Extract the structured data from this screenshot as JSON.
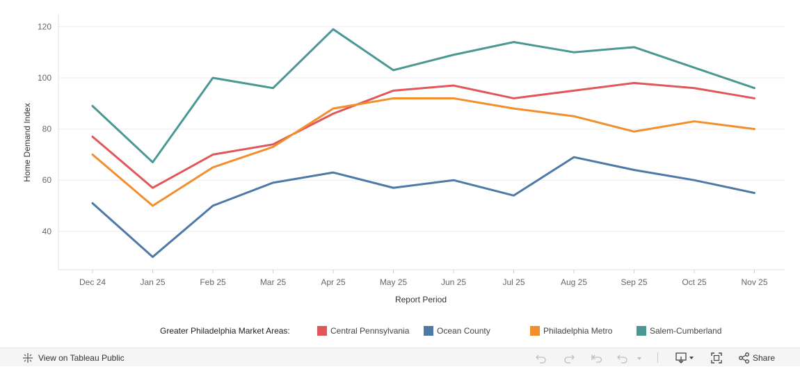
{
  "chart_data": {
    "type": "line",
    "title": "",
    "xlabel": "Report Period",
    "ylabel": "Home Demand Index",
    "ylim": [
      25,
      125
    ],
    "yticks": [
      "40",
      "60",
      "80",
      "100",
      "120"
    ],
    "grid": true,
    "categories": [
      "Dec 24",
      "Jan 25",
      "Feb 25",
      "Mar 25",
      "Apr 25",
      "May 25",
      "Jun 25",
      "Jul 25",
      "Aug 25",
      "Sep 25",
      "Oct 25",
      "Nov 25"
    ],
    "series": [
      {
        "name": "Central Pennsylvania",
        "color": "#e15759",
        "values": [
          77,
          57,
          70,
          74,
          86,
          95,
          97,
          92,
          95,
          98,
          96,
          92
        ]
      },
      {
        "name": "Ocean County",
        "color": "#4e79a7",
        "values": [
          51,
          30,
          50,
          59,
          63,
          57,
          60,
          54,
          69,
          64,
          60,
          55
        ]
      },
      {
        "name": "Philadelphia Metro",
        "color": "#f28e2b",
        "values": [
          70,
          50,
          65,
          73,
          88,
          92,
          92,
          88,
          85,
          79,
          83,
          80
        ]
      },
      {
        "name": "Salem-Cumberland",
        "color": "#499894",
        "values": [
          89,
          67,
          100,
          96,
          119,
          103,
          109,
          114,
          110,
          112,
          104,
          96
        ]
      }
    ]
  },
  "legend": {
    "title": "Greater Philadelphia Market Areas:",
    "items": [
      "Central Pennsylvania",
      "Ocean County",
      "Philadelphia Metro",
      "Salem-Cumberland"
    ]
  },
  "footer": {
    "view_on_label": "View on Tableau Public",
    "share_label": "Share"
  }
}
